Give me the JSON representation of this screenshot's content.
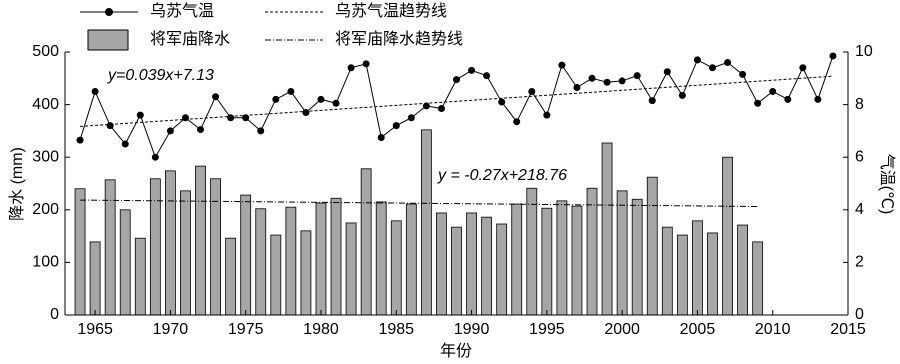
{
  "chart_data": {
    "type": "combo",
    "xlabel": "年份",
    "ylabel": "降水 (mm)",
    "y2label": "气温(℃)",
    "xlim": [
      1963,
      2015
    ],
    "xticks": [
      1965,
      1970,
      1975,
      1980,
      1985,
      1990,
      1995,
      2000,
      2005,
      2010,
      2015
    ],
    "ylim": [
      0,
      500
    ],
    "yticks": [
      0,
      100,
      200,
      300,
      400,
      500
    ],
    "y2lim": [
      0,
      10
    ],
    "y2ticks": [
      0,
      2,
      4,
      6,
      8,
      10
    ],
    "annotations": [
      "y=0.039x+7.13",
      "y = -0.27x+218.76"
    ],
    "series": [
      {
        "name": "乌苏气温",
        "type": "line",
        "axis": "y2",
        "color": "#000000",
        "dash": "solid",
        "marker": true,
        "x": [
          1964,
          1965,
          1966,
          1967,
          1968,
          1969,
          1970,
          1971,
          1972,
          1973,
          1974,
          1975,
          1976,
          1977,
          1978,
          1979,
          1980,
          1981,
          1982,
          1983,
          1984,
          1985,
          1986,
          1987,
          1988,
          1989,
          1990,
          1991,
          1992,
          1993,
          1994,
          1995,
          1996,
          1997,
          1998,
          1999,
          2000,
          2001,
          2002,
          2003,
          2004,
          2005,
          2006,
          2007,
          2008,
          2009,
          2010,
          2011,
          2012,
          2013,
          2014
        ],
        "values": [
          6.65,
          8.5,
          7.2,
          6.5,
          7.6,
          6.0,
          7.0,
          7.5,
          7.05,
          8.3,
          7.5,
          7.5,
          7.0,
          8.2,
          8.5,
          7.7,
          8.2,
          8.05,
          9.4,
          9.55,
          6.75,
          7.2,
          7.5,
          7.95,
          7.85,
          8.95,
          9.3,
          9.1,
          8.1,
          7.35,
          8.5,
          7.6,
          9.5,
          8.65,
          9.0,
          8.85,
          8.9,
          9.1,
          8.15,
          9.25,
          8.35,
          9.7,
          9.4,
          9.6,
          9.15,
          8.05,
          8.5,
          8.2,
          9.4,
          8.2,
          9.85
        ]
      },
      {
        "name": "乌苏气温趋势线",
        "type": "line",
        "axis": "y2",
        "color": "#000000",
        "dash": "dashed",
        "marker": false,
        "x": [
          1964,
          2014
        ],
        "values": [
          7.17,
          9.08
        ]
      },
      {
        "name": "将军庙降水",
        "type": "bar",
        "axis": "y",
        "color": "#a6a6a6",
        "x": [
          1964,
          1965,
          1966,
          1967,
          1968,
          1969,
          1970,
          1971,
          1972,
          1973,
          1974,
          1975,
          1976,
          1977,
          1978,
          1979,
          1980,
          1981,
          1982,
          1983,
          1984,
          1985,
          1986,
          1987,
          1988,
          1989,
          1990,
          1991,
          1992,
          1993,
          1994,
          1995,
          1996,
          1997,
          1998,
          1999,
          2000,
          2001,
          2002,
          2003,
          2004,
          2005,
          2006,
          2007,
          2008,
          2009
        ],
        "values": [
          240,
          139,
          257,
          200,
          146,
          259,
          274,
          236,
          283,
          259,
          146,
          228,
          202,
          152,
          205,
          160,
          213,
          222,
          175,
          278,
          215,
          179,
          211,
          352,
          194,
          167,
          194,
          186,
          173,
          211,
          241,
          203,
          217,
          207,
          241,
          327,
          236,
          220,
          262,
          167,
          152,
          179,
          156,
          300,
          171,
          139
        ]
      },
      {
        "name": "将军庙降水趋势线",
        "type": "line",
        "axis": "y",
        "color": "#000000",
        "dash": "dashdot",
        "marker": false,
        "x": [
          1964,
          2009
        ],
        "values": [
          218.5,
          206.3
        ]
      }
    ]
  }
}
